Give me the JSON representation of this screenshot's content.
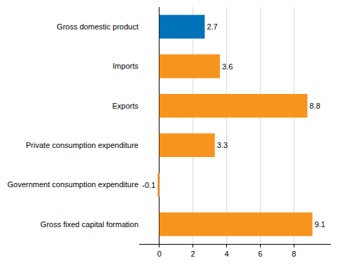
{
  "chart_data": {
    "type": "bar",
    "orientation": "horizontal",
    "categories": [
      "Gross domestic product",
      "Imports",
      "Exports",
      "Private consumption expenditure",
      "Government consumption expenditure",
      "Gross fixed capital formation"
    ],
    "values": [
      2.7,
      3.6,
      8.8,
      3.3,
      -0.1,
      9.1
    ],
    "colors": [
      "#0072b9",
      "#f7941e",
      "#f7941e",
      "#f7941e",
      "#f7941e",
      "#f7941e"
    ],
    "xlim": [
      -1.2,
      10.2
    ],
    "xticks": [
      0,
      2,
      4,
      6,
      8
    ],
    "grid": true,
    "data_labels": true
  }
}
